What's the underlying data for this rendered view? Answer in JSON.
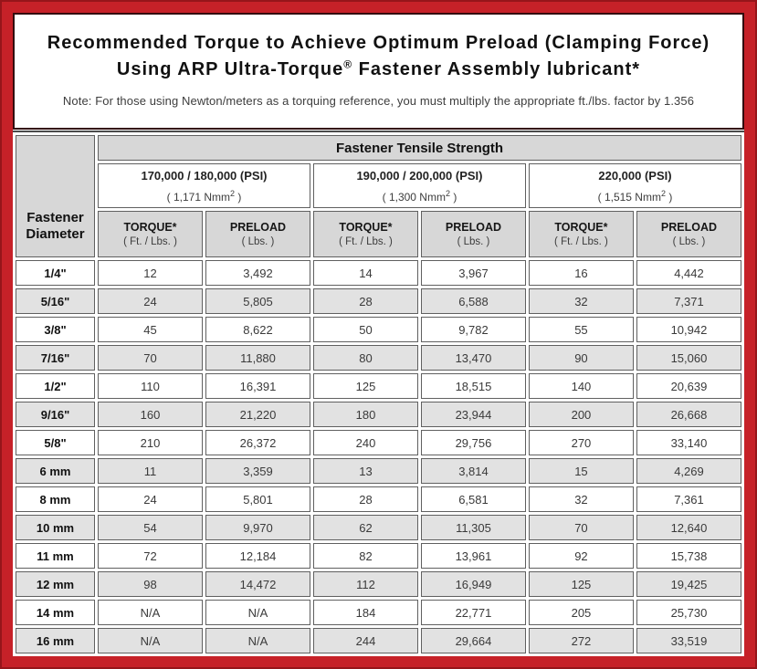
{
  "colors": {
    "frame_red": "#c62128",
    "panel_border_dark": "#330d0f",
    "header_gray": "#d7d7d7",
    "stripe_gray": "#e2e2e2",
    "cell_border": "#606060"
  },
  "title": {
    "line1": "Recommended Torque to Achieve Optimum Preload (Clamping Force)",
    "line2_pre": "Using ARP Ultra-Torque",
    "line2_sup": "®",
    "line2_post": " Fastener Assembly lubricant*"
  },
  "note": "Note: For those using Newton/meters as a torquing reference, you must multiply the appropriate ft./lbs. factor by 1.356",
  "table": {
    "corner": {
      "line1": "Fastener",
      "line2": "Diameter"
    },
    "group_header": "Fastener Tensile Strength",
    "strength_groups": [
      {
        "psi": "170,000 / 180,000 (PSI)",
        "nmm_main": "( 1,171 Nmm",
        "nmm_sup": "2",
        "nmm_close": " )"
      },
      {
        "psi": "190,000 / 200,000 (PSI)",
        "nmm_main": "( 1,300 Nmm",
        "nmm_sup": "2",
        "nmm_close": " )"
      },
      {
        "psi": "220,000 (PSI)",
        "nmm_main": "( 1,515 Nmm",
        "nmm_sup": "2",
        "nmm_close": " )"
      }
    ],
    "col_headers": [
      {
        "label": "TORQUE*",
        "unit": "( Ft. / Lbs. )"
      },
      {
        "label": "PRELOAD",
        "unit": "( Lbs. )"
      },
      {
        "label": "TORQUE*",
        "unit": "( Ft. / Lbs. )"
      },
      {
        "label": "PRELOAD",
        "unit": "( Lbs. )"
      },
      {
        "label": "TORQUE*",
        "unit": "( Ft. / Lbs. )"
      },
      {
        "label": "PRELOAD",
        "unit": "( Lbs. )"
      }
    ],
    "rows": [
      {
        "d": "1/4\"",
        "v": [
          "12",
          "3,492",
          "14",
          "3,967",
          "16",
          "4,442"
        ]
      },
      {
        "d": "5/16\"",
        "v": [
          "24",
          "5,805",
          "28",
          "6,588",
          "32",
          "7,371"
        ]
      },
      {
        "d": "3/8\"",
        "v": [
          "45",
          "8,622",
          "50",
          "9,782",
          "55",
          "10,942"
        ]
      },
      {
        "d": "7/16\"",
        "v": [
          "70",
          "11,880",
          "80",
          "13,470",
          "90",
          "15,060"
        ]
      },
      {
        "d": "1/2\"",
        "v": [
          "110",
          "16,391",
          "125",
          "18,515",
          "140",
          "20,639"
        ]
      },
      {
        "d": "9/16\"",
        "v": [
          "160",
          "21,220",
          "180",
          "23,944",
          "200",
          "26,668"
        ]
      },
      {
        "d": "5/8\"",
        "v": [
          "210",
          "26,372",
          "240",
          "29,756",
          "270",
          "33,140"
        ]
      },
      {
        "d": "6 mm",
        "v": [
          "11",
          "3,359",
          "13",
          "3,814",
          "15",
          "4,269"
        ]
      },
      {
        "d": "8 mm",
        "v": [
          "24",
          "5,801",
          "28",
          "6,581",
          "32",
          "7,361"
        ]
      },
      {
        "d": "10 mm",
        "v": [
          "54",
          "9,970",
          "62",
          "11,305",
          "70",
          "12,640"
        ]
      },
      {
        "d": "11 mm",
        "v": [
          "72",
          "12,184",
          "82",
          "13,961",
          "92",
          "15,738"
        ]
      },
      {
        "d": "12 mm",
        "v": [
          "98",
          "14,472",
          "112",
          "16,949",
          "125",
          "19,425"
        ]
      },
      {
        "d": "14 mm",
        "v": [
          "N/A",
          "N/A",
          "184",
          "22,771",
          "205",
          "25,730"
        ]
      },
      {
        "d": "16 mm",
        "v": [
          "N/A",
          "N/A",
          "244",
          "29,664",
          "272",
          "33,519"
        ]
      }
    ]
  }
}
